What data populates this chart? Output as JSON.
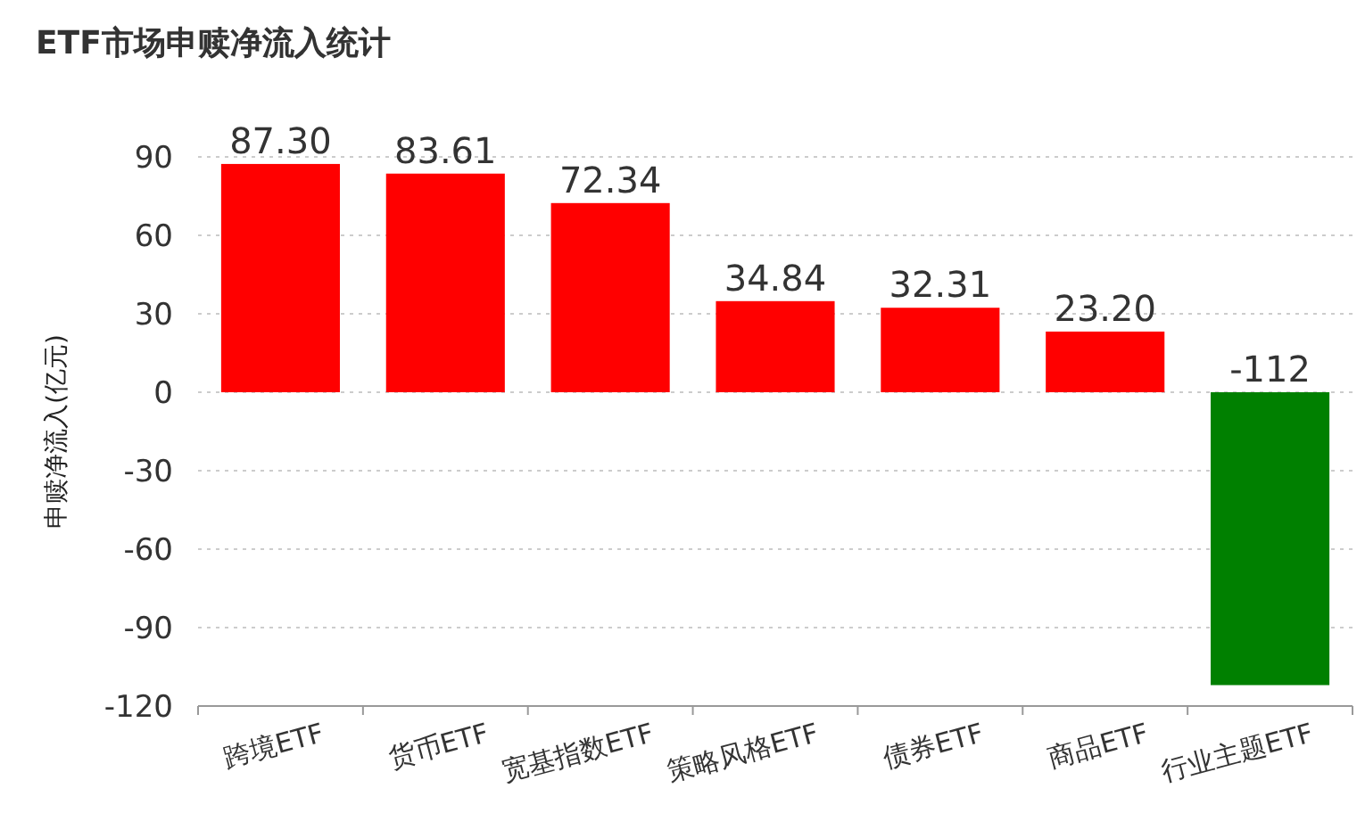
{
  "chart_data": {
    "type": "bar",
    "title": "ETF市场申赎净流入统计",
    "ylabel": "申赎净流入(亿元)",
    "categories": [
      "跨境ETF",
      "货币ETF",
      "宽基指数ETF",
      "策略风格ETF",
      "债券ETF",
      "商品ETF",
      "行业主题ETF"
    ],
    "values": [
      87.3,
      83.61,
      72.34,
      34.84,
      32.31,
      23.2,
      -112
    ],
    "colors": [
      "#ff0000",
      "#ff0000",
      "#ff0000",
      "#ff0000",
      "#ff0000",
      "#ff0000",
      "#008000"
    ],
    "value_labels": [
      "87.30",
      "83.61",
      "72.34",
      "34.84",
      "32.31",
      "23.20",
      "-112"
    ],
    "ylim": [
      -120,
      90
    ],
    "yticks": [
      -120,
      -90,
      -60,
      -30,
      0,
      30,
      60,
      90
    ],
    "grid": "y"
  }
}
